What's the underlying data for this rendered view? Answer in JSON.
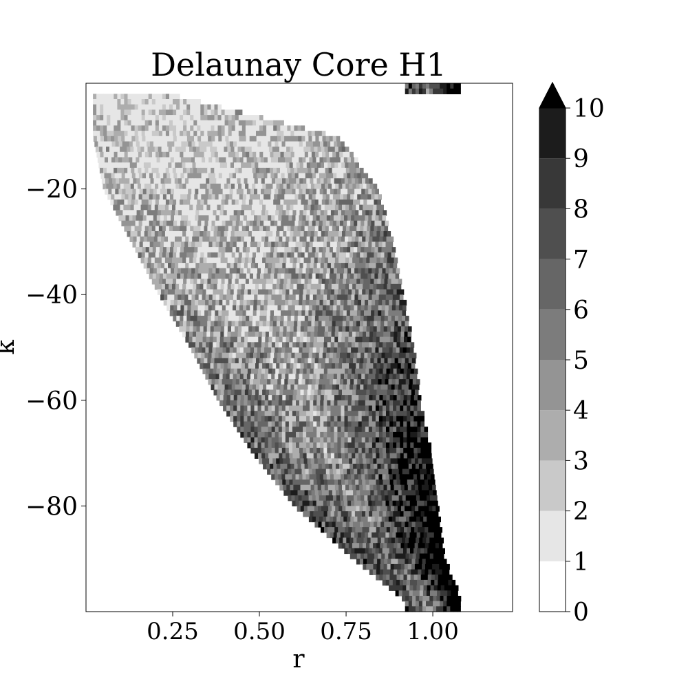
{
  "chart_data": {
    "type": "heatmap",
    "title": "Delaunay Core H1",
    "xlabel": "r",
    "ylabel": "k",
    "xlim": [
      0.0,
      1.23
    ],
    "ylim": [
      -100,
      0
    ],
    "x_ticks": [
      0.25,
      0.5,
      0.75,
      1.0
    ],
    "x_tick_labels": [
      "0.25",
      "0.50",
      "0.75",
      "1.00"
    ],
    "y_ticks": [
      -20,
      -40,
      -60,
      -80
    ],
    "y_tick_labels": [
      "−20",
      "−40",
      "−60",
      "−80"
    ],
    "grid": false,
    "colorbar": {
      "min": 0,
      "max": 10,
      "levels": [
        0,
        1,
        2,
        3,
        4,
        5,
        6,
        7,
        8,
        9,
        10
      ],
      "tick_labels": [
        "0",
        "1",
        "2",
        "3",
        "4",
        "5",
        "6",
        "7",
        "8",
        "9",
        "10"
      ],
      "extend": "max",
      "colors": [
        "#ffffff",
        "#e6e6e6",
        "#c9c9c9",
        "#adadad",
        "#949494",
        "#7c7c7c",
        "#666666",
        "#4f4f4f",
        "#383838",
        "#1c1c1c",
        "#000000"
      ]
    },
    "region_summary": [
      {
        "k": -2,
        "r_range": [
          0.02,
          0.24
        ],
        "dominant_level": 1
      },
      {
        "k": -10,
        "r_range": [
          0.02,
          0.72
        ],
        "dominant_level": 2
      },
      {
        "k": -20,
        "r_range": [
          0.05,
          0.84
        ],
        "dominant_level": 3
      },
      {
        "k": -30,
        "r_range": [
          0.13,
          0.88
        ],
        "dominant_level": 4
      },
      {
        "k": -40,
        "r_range": [
          0.21,
          0.91
        ],
        "dominant_level": 5
      },
      {
        "k": -50,
        "r_range": [
          0.3,
          0.94
        ],
        "dominant_level": 6
      },
      {
        "k": -60,
        "r_range": [
          0.38,
          0.96
        ],
        "dominant_level": 7
      },
      {
        "k": -70,
        "r_range": [
          0.48,
          0.99
        ],
        "dominant_level": 8
      },
      {
        "k": -80,
        "r_range": [
          0.6,
          1.01
        ],
        "dominant_level": 9
      },
      {
        "k": -90,
        "r_range": [
          0.77,
          1.03
        ],
        "dominant_level": 10
      },
      {
        "k": -98,
        "r_range": [
          0.92,
          1.08
        ],
        "dominant_level": 10
      }
    ]
  }
}
